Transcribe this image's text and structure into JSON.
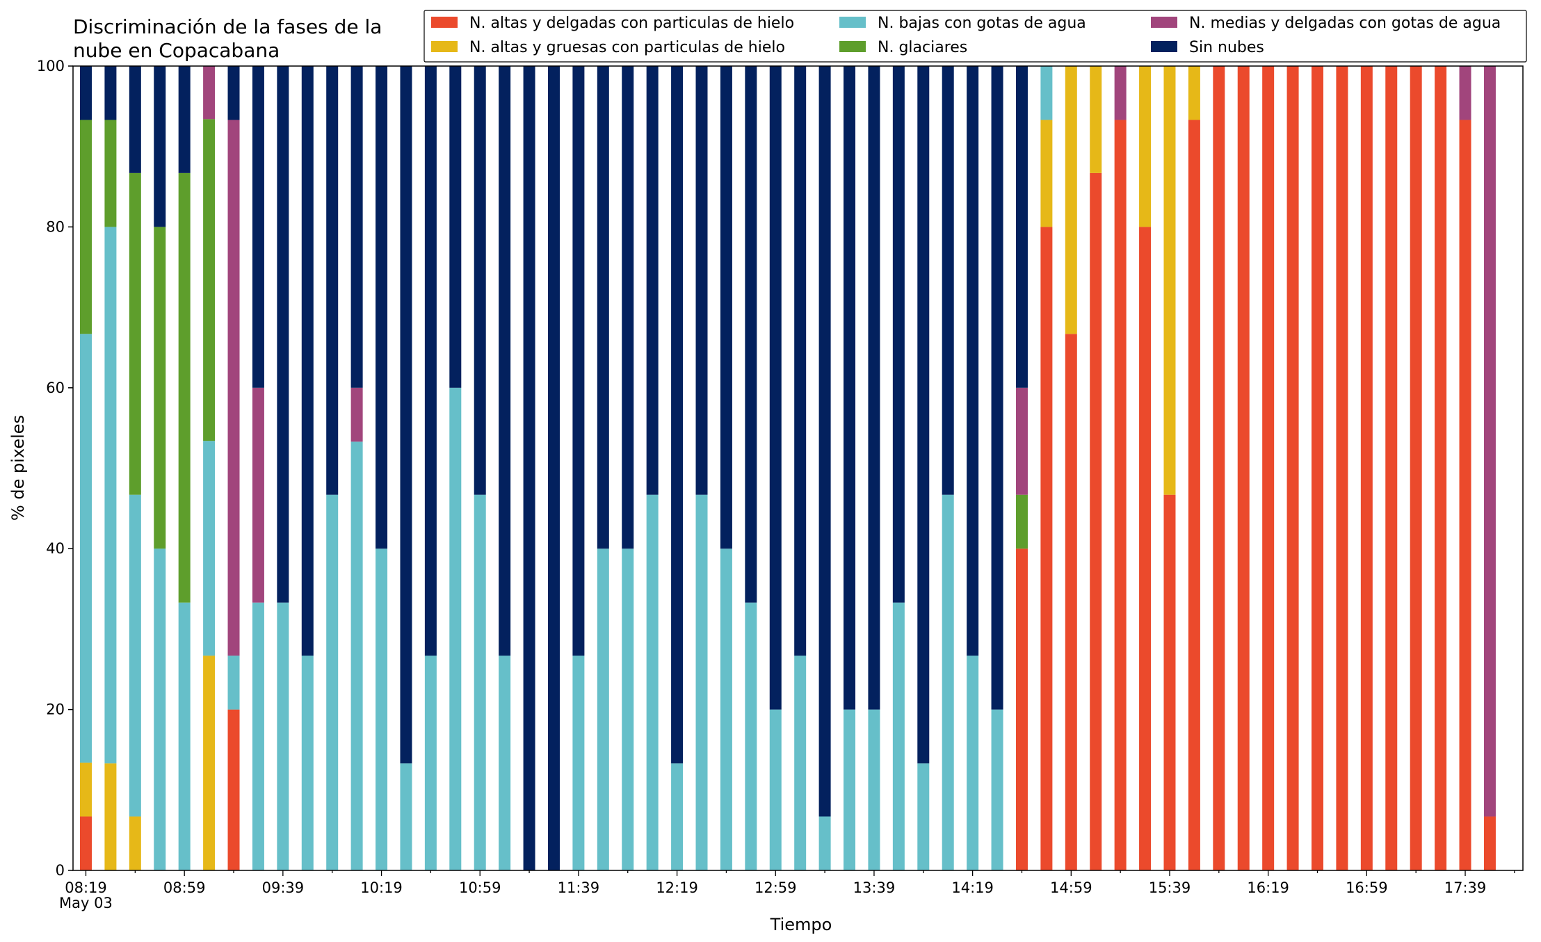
{
  "chart_data": {
    "type": "bar",
    "stacked": true,
    "title": "Discriminación de la fases de la\nnube en Copacabana",
    "xlabel": "Tiempo",
    "ylabel": "% de pixeles",
    "ylim": [
      0,
      100
    ],
    "yticks": [
      0,
      20,
      40,
      60,
      80,
      100
    ],
    "grid": false,
    "legend_position": "top-right",
    "x_tick_labels": [
      "08:19",
      "08:59",
      "09:39",
      "10:19",
      "10:59",
      "11:39",
      "12:19",
      "12:59",
      "13:39",
      "14:19",
      "14:59",
      "15:39",
      "16:19",
      "16:59",
      "17:39"
    ],
    "x_date_label": "May 03",
    "x": [
      "08:19",
      "08:29",
      "08:39",
      "08:49",
      "08:59",
      "09:09",
      "09:19",
      "09:29",
      "09:39",
      "09:49",
      "09:59",
      "10:09",
      "10:19",
      "10:29",
      "10:39",
      "10:49",
      "10:59",
      "11:09",
      "11:19",
      "11:29",
      "11:39",
      "11:49",
      "11:59",
      "12:09",
      "12:19",
      "12:29",
      "12:39",
      "12:49",
      "12:59",
      "13:09",
      "13:19",
      "13:29",
      "13:39",
      "13:49",
      "13:59",
      "14:09",
      "14:19",
      "14:29",
      "14:39",
      "14:49",
      "14:59",
      "15:09",
      "15:19",
      "15:29",
      "15:39",
      "15:49",
      "15:59",
      "16:09",
      "16:19",
      "16:29",
      "16:39",
      "16:49",
      "16:59",
      "17:09",
      "17:19",
      "17:29",
      "17:39",
      "17:49"
    ],
    "series": [
      {
        "name": "N. altas y delgadas con particulas de hielo",
        "color": "#eb4a2c",
        "values": [
          6.7,
          0,
          0,
          0,
          0,
          0,
          20,
          0,
          0,
          0,
          0,
          0,
          0,
          0,
          0,
          0,
          0,
          0,
          0,
          0,
          0,
          0,
          0,
          0,
          0,
          0,
          0,
          0,
          0,
          0,
          0,
          0,
          0,
          0,
          0,
          0,
          0,
          0,
          40,
          80,
          66.7,
          86.7,
          93.3,
          80,
          46.7,
          93.3,
          100,
          100,
          100,
          100,
          100,
          100,
          100,
          100,
          100,
          100,
          93.3,
          6.7
        ]
      },
      {
        "name": "N. altas y gruesas con particulas de hielo",
        "color": "#e6b818",
        "values": [
          6.7,
          13.3,
          6.7,
          0,
          0,
          26.7,
          0,
          0,
          0,
          0,
          0,
          0,
          0,
          0,
          0,
          0,
          0,
          0,
          0,
          0,
          0,
          0,
          0,
          0,
          0,
          0,
          0,
          0,
          0,
          0,
          0,
          0,
          0,
          0,
          0,
          0,
          0,
          0,
          0,
          13.3,
          33.3,
          13.3,
          0,
          20,
          53.3,
          6.7,
          0,
          0,
          0,
          0,
          0,
          0,
          0,
          0,
          0,
          0,
          0,
          0
        ]
      },
      {
        "name": "N. bajas con gotas de agua",
        "color": "#66bfc9",
        "values": [
          53.3,
          66.7,
          40,
          40,
          33.3,
          26.7,
          6.7,
          33.3,
          33.3,
          26.7,
          46.7,
          53.3,
          40,
          13.3,
          26.7,
          60,
          46.7,
          26.7,
          0,
          0,
          26.7,
          40,
          40,
          46.7,
          13.3,
          46.7,
          40,
          33.3,
          20,
          26.7,
          6.7,
          20,
          20,
          33.3,
          13.3,
          46.7,
          26.7,
          20,
          0,
          6.7,
          0,
          0,
          0,
          0,
          0,
          0,
          0,
          0,
          0,
          0,
          0,
          0,
          0,
          0,
          0,
          0,
          0,
          0
        ]
      },
      {
        "name": "N. glaciares",
        "color": "#5e9e2c",
        "values": [
          26.6,
          13.3,
          40,
          40,
          53.4,
          40,
          0,
          0,
          0,
          0,
          0,
          0,
          0,
          0,
          0,
          0,
          0,
          0,
          0,
          0,
          0,
          0,
          0,
          0,
          0,
          0,
          0,
          0,
          0,
          0,
          0,
          0,
          0,
          0,
          0,
          0,
          0,
          0,
          6.7,
          0,
          0,
          0,
          0,
          0,
          0,
          0,
          0,
          0,
          0,
          0,
          0,
          0,
          0,
          0,
          0,
          0,
          0,
          0
        ]
      },
      {
        "name": "N. medias y delgadas con gotas de agua",
        "color": "#a1457c",
        "values": [
          0,
          0,
          0,
          0,
          0,
          6.6,
          66.6,
          26.7,
          0,
          0,
          0,
          6.7,
          0,
          0,
          0,
          0,
          0,
          0,
          0,
          0,
          0,
          0,
          0,
          0,
          0,
          0,
          0,
          0,
          0,
          0,
          0,
          0,
          0,
          0,
          0,
          0,
          0,
          0,
          13.3,
          0,
          0,
          0,
          6.7,
          0,
          0,
          0,
          0,
          0,
          0,
          0,
          0,
          0,
          0,
          0,
          0,
          0,
          6.7,
          93.3
        ]
      },
      {
        "name": "Sin nubes",
        "color": "#03215e",
        "values": [
          6.7,
          6.7,
          13.3,
          20,
          13.3,
          0,
          6.7,
          40,
          66.7,
          73.3,
          53.3,
          40,
          60,
          86.7,
          73.3,
          40,
          53.3,
          73.3,
          100,
          100,
          73.3,
          60,
          60,
          53.3,
          86.7,
          53.3,
          60,
          66.7,
          80,
          73.3,
          93.3,
          80,
          80,
          66.7,
          86.7,
          53.3,
          73.3,
          80,
          40,
          0,
          0,
          0,
          0,
          0,
          0,
          0,
          0,
          0,
          0,
          0,
          0,
          0,
          0,
          0,
          0,
          0,
          0,
          0
        ]
      }
    ]
  }
}
